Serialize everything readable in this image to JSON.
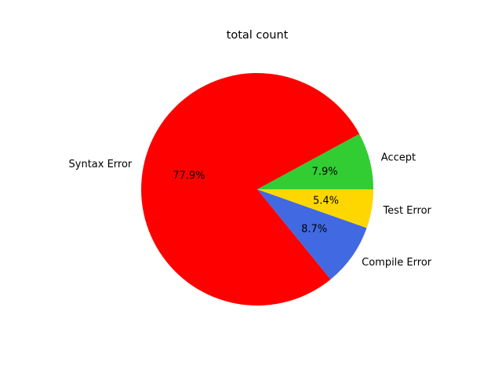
{
  "chart_data": {
    "type": "pie",
    "title": "total count",
    "start_angle_deg": 0,
    "direction": "counterclockwise",
    "slices": [
      {
        "label": "Accept",
        "percent": 7.9,
        "pct_text": "7.9%",
        "color": "#32CD32"
      },
      {
        "label": "Syntax Error",
        "percent": 77.9,
        "pct_text": "77.9%",
        "color": "#FF0000"
      },
      {
        "label": "Compile Error",
        "percent": 8.7,
        "pct_text": "8.7%",
        "color": "#4169E1"
      },
      {
        "label": "Test Error",
        "percent": 5.4,
        "pct_text": "5.4%",
        "color": "#FFD700"
      }
    ]
  }
}
